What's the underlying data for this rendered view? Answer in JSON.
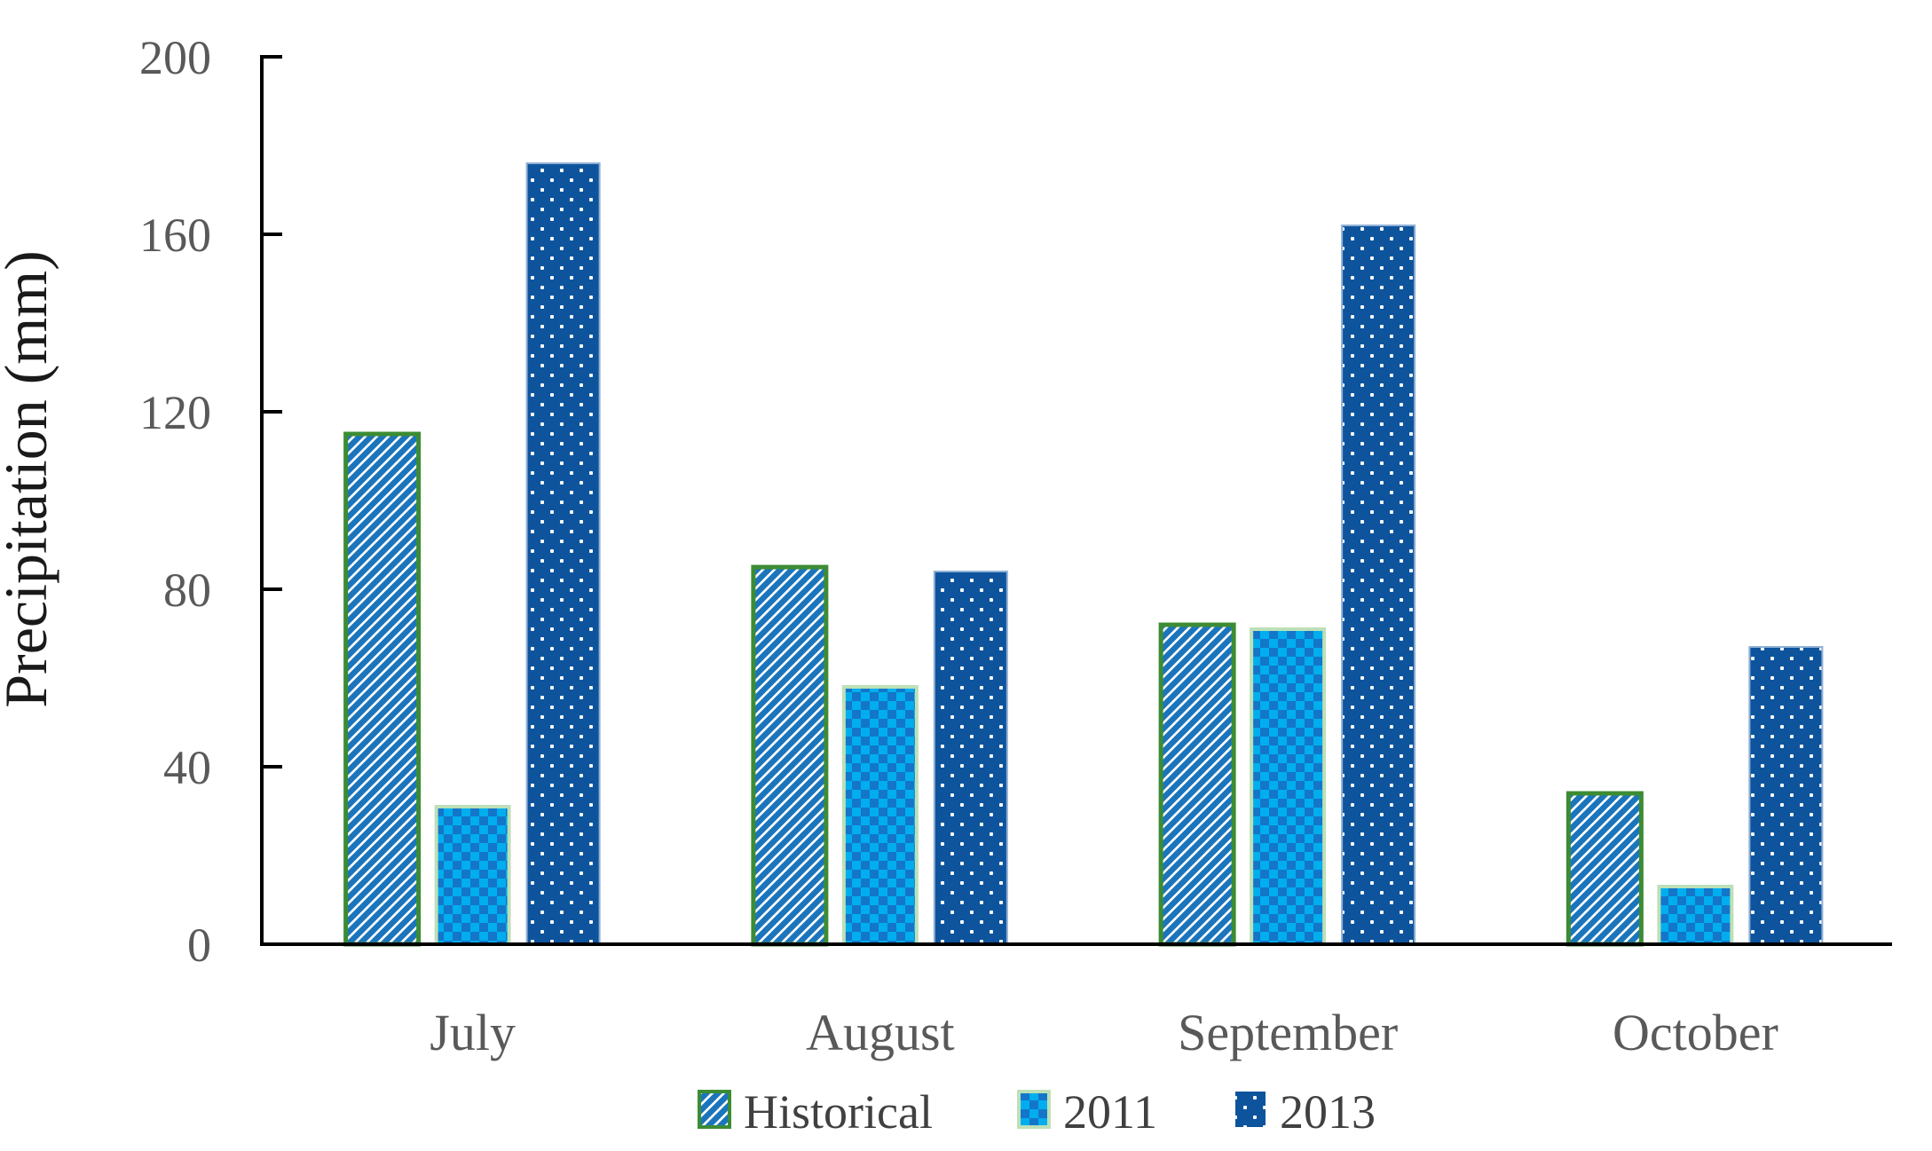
{
  "chart_data": {
    "type": "bar",
    "title": "",
    "xlabel": "",
    "ylabel": "Precipitation (mm)",
    "ylim": [
      0,
      200
    ],
    "yticks": [
      0,
      40,
      80,
      120,
      160,
      200
    ],
    "grid": false,
    "legend_position": "bottom",
    "categories": [
      "July",
      "August",
      "September",
      "October"
    ],
    "series": [
      {
        "name": "Historical",
        "pattern": "hatch",
        "values": [
          115,
          85,
          72,
          34
        ]
      },
      {
        "name": "2011",
        "pattern": "checker",
        "values": [
          31,
          58,
          71,
          13
        ]
      },
      {
        "name": "2013",
        "pattern": "dots",
        "values": [
          176,
          84,
          162,
          67
        ]
      }
    ]
  },
  "colors": {
    "hatch_stripe": "#1B75BC",
    "hatch_border": "#3C8C34",
    "checker_light": "#00AEEF",
    "checker_dark": "#1476C8",
    "checker_border": "#BDE0B8",
    "dots_fill": "#0E549D",
    "dots_border": "#8FAFD4",
    "axis": "#000000",
    "tick_text": "#595959",
    "axis_title_text": "#1A1A1A",
    "legend_text": "#404040",
    "background": "#FFFFFF"
  }
}
